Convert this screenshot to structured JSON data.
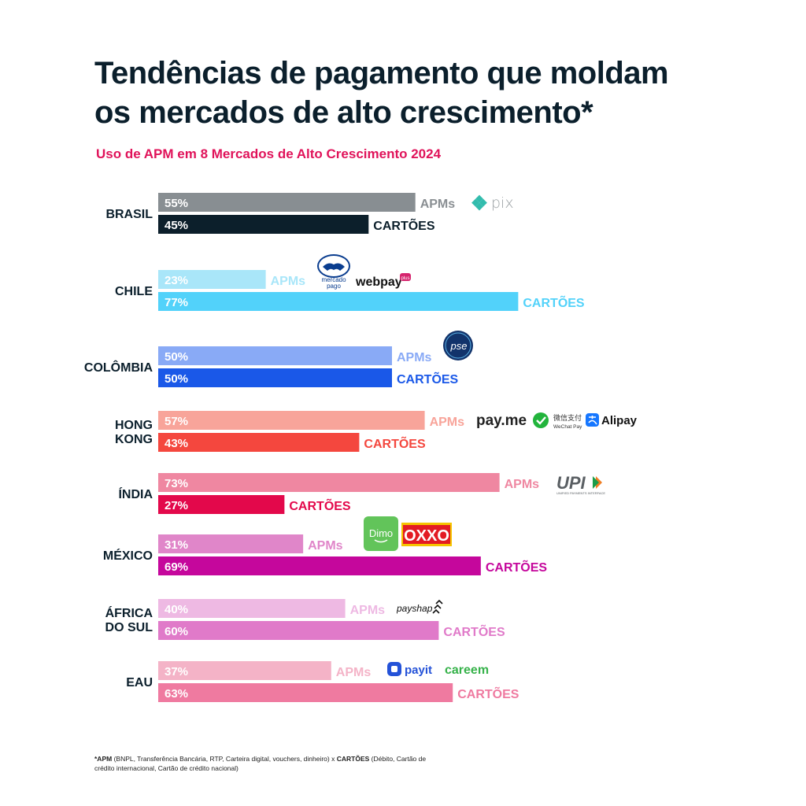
{
  "title": {
    "line1": "Tendências de pagamento que moldam",
    "line2": "os mercados de alto crescimento*"
  },
  "subtitle": "Uso de APM em 8 Mercados de Alto Crescimento 2024",
  "chart_data": {
    "type": "bar",
    "orientation": "horizontal",
    "title": "Uso de APM em 8 Mercados de Alto Crescimento 2024",
    "xlim": [
      0,
      100
    ],
    "grid": false,
    "unit": "%",
    "categories": [
      "BRASIL",
      "CHILE",
      "COLÔMBIA",
      "HONG KONG",
      "ÍNDIA",
      "MÉXICO",
      "ÁFRICA DO SUL",
      "EAU"
    ],
    "series": [
      {
        "name": "APMs",
        "values": [
          55,
          23,
          50,
          57,
          73,
          31,
          40,
          37
        ]
      },
      {
        "name": "CARTÕES",
        "values": [
          45,
          77,
          50,
          43,
          27,
          69,
          60,
          63
        ]
      }
    ],
    "country_labels": [
      [
        "BRASIL"
      ],
      [
        "CHILE"
      ],
      [
        "COLÔMBIA"
      ],
      [
        "HONG",
        "KONG"
      ],
      [
        "ÍNDIA"
      ],
      [
        "MÉXICO"
      ],
      [
        "ÁFRICA",
        "DO SUL"
      ],
      [
        "EAU"
      ]
    ],
    "series_labels": [
      "APMs",
      "CARTÕES"
    ],
    "colors": {
      "apm": [
        "#888e92",
        "#a9e6f9",
        "#89aaf6",
        "#f8a49a",
        "#ef87a1",
        "#e086c9",
        "#eeb9e3",
        "#f4b3c7"
      ],
      "card": [
        "#0c1f2b",
        "#52d2fa",
        "#1a58e8",
        "#f4473e",
        "#e3084b",
        "#c5079c",
        "#e07ac9",
        "#ef7aa0"
      ],
      "apm_text": [
        "#8a8f93",
        "#a9e6f9",
        "#89aaf6",
        "#f8a49a",
        "#ef87a1",
        "#e086c9",
        "#eeb9e3",
        "#f4b3c7"
      ],
      "card_text": [
        "#0c1f2b",
        "#52d2fa",
        "#1a58e8",
        "#f4473e",
        "#e3084b",
        "#c5079c",
        "#e07ac9",
        "#ef7aa0"
      ]
    }
  },
  "logos": {
    "pix": "pix",
    "mercadopago_line1": "mercado",
    "mercadopago_line2": "pago",
    "webpay": "webpay",
    "webpay_plus": "plus",
    "pse": "pse",
    "payme": "pay.me",
    "wechat_line1": "微信支付",
    "wechat_line2": "WeChat Pay",
    "alipay": "Alipay",
    "upi": "UPI",
    "upi_sub": "UNIFIED PAYMENTS INTERFACE",
    "dimo": "Dimo",
    "oxxo": "OXXO",
    "payshap": "payshap",
    "payit": "payit",
    "careem": "careem"
  },
  "footnote": {
    "apm_label": "*APM",
    "apm_text": " (BNPL, Transferência Bancária, RTP, Carteira digital, vouchers, dinheiro)   x   ",
    "card_label": "CARTÕES",
    "card_text": " (Débito, Cartão de crédito internacional, Cartão de crédito nacional)"
  }
}
